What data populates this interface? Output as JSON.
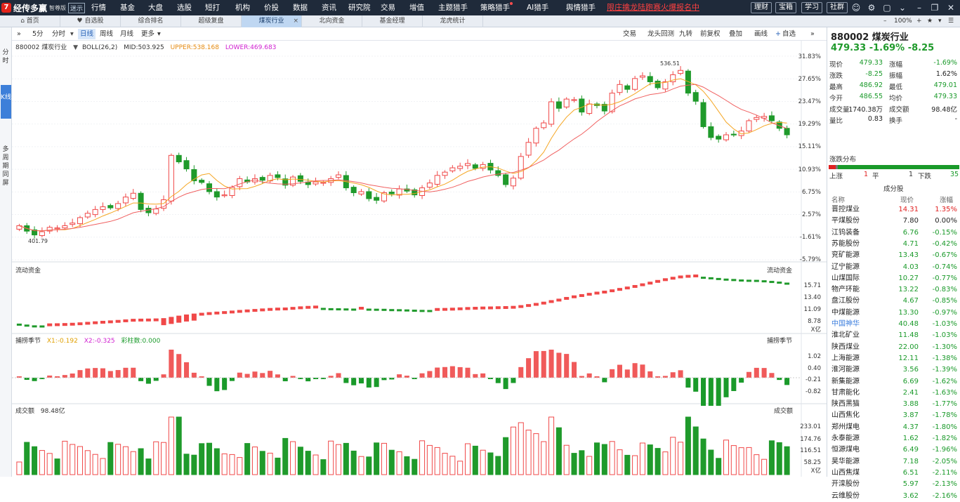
{
  "app": {
    "logo_text": "经传多赢",
    "logo_sub": "智尊版",
    "version_badge": "迷示",
    "nav": [
      "行情",
      "基金",
      "大盘",
      "选股",
      "短打",
      "机构",
      "价投",
      "数据",
      "资讯",
      "研究院",
      "交易",
      "增值",
      "主题猎手",
      "策略猎手",
      "AI猎手",
      "舆情猎手"
    ],
    "promo": "限庄擒龙陆跑赛火爆报名中",
    "right_buttons": [
      "理财",
      "宝箱",
      "学习",
      "社群"
    ]
  },
  "tabs": {
    "items": [
      "首页",
      "自选股",
      "综合排名",
      "超级复盘",
      "煤炭行业",
      "北向资金",
      "基金经理",
      "龙虎统计"
    ],
    "active_index": 4,
    "zoom": "100%"
  },
  "left_rail": [
    "分时",
    "K线",
    "多周期同屏"
  ],
  "chart_toolbar": {
    "left": [
      "5分",
      "分时",
      "日线",
      "周线",
      "月线",
      "更多"
    ],
    "active": "日线",
    "right": [
      "交易",
      "龙头回测",
      "九转",
      "前复权",
      "叠加",
      "画线",
      "自选"
    ]
  },
  "main_panel": {
    "symbol": "880002 煤炭行业",
    "indicator": "BOLL(26,2)",
    "mid": "MID:503.925",
    "upper": "UPPER:538.168",
    "lower": "LOWER:469.683",
    "y_axis": [
      "31.83%",
      "27.65%",
      "23.47%",
      "19.29%",
      "15.11%",
      "10.93%",
      "6.75%",
      "2.57%",
      "-1.61%",
      "-5.79%"
    ],
    "high_marker": "536.51",
    "low_marker": "401.79"
  },
  "flow_panel": {
    "title": "流动资金",
    "right_title": "流动资金",
    "y_axis": [
      "15.71",
      "13.40",
      "11.09",
      "8.78"
    ],
    "unit": "X亿"
  },
  "capture_panel": {
    "title": "捕捞季节",
    "x1": "X1:-0.192",
    "x2": "X2:-0.325",
    "bars": "彩柱数:0.000",
    "right_title": "捕捞季节",
    "y_axis": [
      "1.02",
      "0.40",
      "-0.21",
      "-0.82"
    ]
  },
  "volume_panel": {
    "title": "成交额",
    "value": "98.48亿",
    "right_title": "成交额",
    "y_axis": [
      "233.01",
      "174.76",
      "116.51",
      "58.25"
    ],
    "unit": "X亿"
  },
  "quote": {
    "code_name": "880002 煤炭行业",
    "price_line": "479.33  -1.69%  -8.25",
    "rows": [
      [
        "现价",
        "479.33",
        "green",
        "涨幅",
        "-1.69%",
        "green"
      ],
      [
        "涨跌",
        "-8.25",
        "green",
        "振幅",
        "1.62%",
        "black"
      ],
      [
        "最高",
        "486.92",
        "green",
        "最低",
        "479.01",
        "green"
      ],
      [
        "今开",
        "486.55",
        "green",
        "均价",
        "479.33",
        "green"
      ],
      [
        "成交量",
        "1740.38万",
        "black",
        "成交额",
        "98.48亿",
        "black"
      ],
      [
        "量比",
        "0.83",
        "black",
        "换手",
        "-",
        "black"
      ]
    ],
    "dist_title": "涨跌分布",
    "dist": {
      "up_label": "上涨",
      "up": "1",
      "flat_label": "平",
      "flat": "1",
      "down_label": "下跌",
      "down": "35"
    },
    "constituents_title": "成分股",
    "col_headers": [
      "名称",
      "现价",
      "涨幅"
    ],
    "constituents": [
      [
        "晋控煤业",
        "14.31",
        "1.35%",
        "red"
      ],
      [
        "平煤股份",
        "7.80",
        "0.00%",
        "black"
      ],
      [
        "江钨装备",
        "6.76",
        "-0.15%",
        "green"
      ],
      [
        "苏能股份",
        "4.71",
        "-0.42%",
        "green"
      ],
      [
        "兖矿能源",
        "13.43",
        "-0.67%",
        "green"
      ],
      [
        "辽宁能源",
        "4.03",
        "-0.74%",
        "green"
      ],
      [
        "山煤国际",
        "10.27",
        "-0.77%",
        "green"
      ],
      [
        "物产环能",
        "13.22",
        "-0.83%",
        "green"
      ],
      [
        "盘江股份",
        "4.67",
        "-0.85%",
        "green"
      ],
      [
        "中煤能源",
        "13.30",
        "-0.97%",
        "green"
      ],
      [
        "中国神华",
        "40.48",
        "-1.03%",
        "green"
      ],
      [
        "淮北矿业",
        "11.48",
        "-1.03%",
        "green"
      ],
      [
        "陕西煤业",
        "22.00",
        "-1.30%",
        "green"
      ],
      [
        "上海能源",
        "12.11",
        "-1.38%",
        "green"
      ],
      [
        "淮河能源",
        "3.56",
        "-1.39%",
        "green"
      ],
      [
        "新集能源",
        "6.69",
        "-1.62%",
        "green"
      ],
      [
        "甘肃能化",
        "2.41",
        "-1.63%",
        "green"
      ],
      [
        "陕西黑猫",
        "3.88",
        "-1.77%",
        "green"
      ],
      [
        "山西焦化",
        "3.87",
        "-1.78%",
        "green"
      ],
      [
        "郑州煤电",
        "4.37",
        "-1.80%",
        "green"
      ],
      [
        "永泰能源",
        "1.62",
        "-1.82%",
        "green"
      ],
      [
        "恒源煤电",
        "6.49",
        "-1.96%",
        "green"
      ],
      [
        "昊华能源",
        "7.18",
        "-2.05%",
        "green"
      ],
      [
        "山西焦煤",
        "6.51",
        "-2.11%",
        "green"
      ],
      [
        "开滦股份",
        "5.97",
        "-2.13%",
        "green"
      ],
      [
        "云维股份",
        "3.62",
        "-2.16%",
        "green"
      ]
    ]
  },
  "chart_data": {
    "type": "candlestick",
    "closes_pct": [
      0.5,
      -0.5,
      -1.2,
      -0.6,
      0.2,
      0.1,
      0.5,
      1.0,
      2.0,
      2.8,
      3.5,
      4.0,
      3.8,
      4.6,
      5.8,
      6.5,
      3.5,
      2.9,
      3.6,
      5.3,
      13.5,
      12.3,
      11.0,
      8.8,
      8.5,
      6.8,
      5.8,
      6.2,
      7.6,
      9.2,
      8.6,
      9.2,
      8.9,
      9.8,
      9.4,
      8.0,
      9.5,
      8.7,
      8.1,
      8.6,
      8.5,
      9.2,
      9.9,
      7.5,
      6.6,
      6.8,
      5.5,
      5.2,
      6.6,
      6.4,
      7.3,
      6.9,
      6.2,
      7.5,
      8.4,
      9.8,
      10.4,
      11.2,
      11.5,
      12.0,
      11.1,
      11.8,
      10.8,
      9.8,
      8.1,
      9.3,
      13.3,
      15.9,
      18.5,
      19.5,
      23.4,
      22.2,
      23.9,
      23.8,
      21.5,
      23.0,
      22.7,
      21.7,
      25.0,
      26.6,
      25.7,
      27.7,
      28.2,
      27.1,
      26.0,
      27.1,
      28.4,
      29.2,
      25.0,
      23.5,
      18.8,
      16.8,
      16.5,
      17.3,
      17.4,
      18.0,
      19.9,
      20.5,
      20.7,
      19.9,
      18.5,
      17.3
    ]
  }
}
